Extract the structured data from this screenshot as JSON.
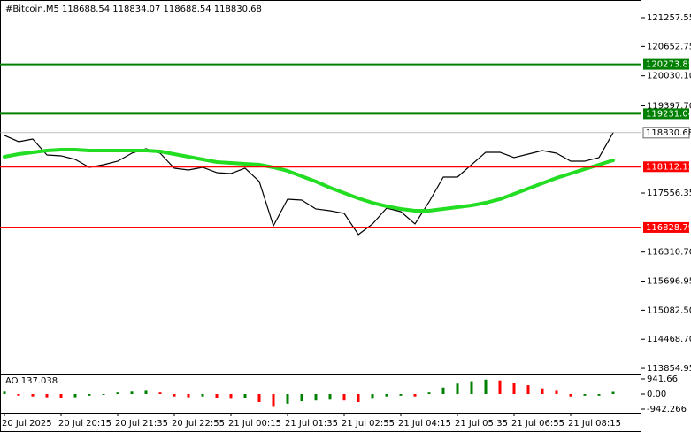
{
  "chart_data": [
    {
      "type": "line",
      "title": "#Bitcoin,M5  118688.54 118834.07 118688.54 118830.68",
      "categories": [
        "20 Jul 2025",
        null,
        null,
        null,
        "20 Jul 20:15",
        null,
        null,
        null,
        "20 Jul 21:35",
        null,
        null,
        null,
        "20 Jul 22:55",
        null,
        null,
        null,
        "21 Jul 00:15",
        null,
        null,
        null,
        "21 Jul 01:35",
        null,
        null,
        null,
        "21 Jul 02:55",
        null,
        null,
        null,
        "21 Jul 04:15",
        null,
        null,
        null,
        "21 Jul 05:35",
        null,
        null,
        null,
        "21 Jul 06:55",
        null,
        null,
        null,
        "21 Jul 08:15",
        null,
        null,
        null
      ],
      "series": [
        {
          "color": "#000000",
          "values": [
            118772,
            118641,
            118697,
            118361,
            118342,
            118267,
            118099,
            118155,
            118230,
            118398,
            118491,
            118398,
            118080,
            118043,
            118099,
            117987,
            117968,
            118080,
            117800,
            116865,
            117426,
            117407,
            117221,
            117183,
            117127,
            116679,
            116903,
            117239,
            117164,
            116903,
            117370,
            117893,
            117893,
            118155,
            118417,
            118417,
            118305,
            118379,
            118454,
            118398,
            118230,
            118230,
            118305,
            118830.68
          ]
        },
        {
          "color": "#22dd22",
          "values": [
            118323,
            118379,
            118417,
            118454,
            118473,
            118473,
            118454,
            118454,
            118454,
            118454,
            118454,
            118435,
            118379,
            118323,
            118267,
            118211,
            118192,
            118174,
            118155,
            118099,
            118024,
            117912,
            117800,
            117669,
            117557,
            117445,
            117351,
            117277,
            117221,
            117183,
            117183,
            117221,
            117258,
            117295,
            117351,
            117426,
            117538,
            117650,
            117763,
            117875,
            117968,
            118062,
            118155,
            118248
          ]
        }
      ],
      "ylim": [
        113744,
        121631
      ],
      "yticks": [
        121257.55,
        120652.75,
        {
          "value": 120030.1,
          "label": "120030.10"
        },
        {
          "value": 119397.7,
          "label": "119397.70"
        },
        117556.35,
        {
          "value": 116310.7,
          "label": "116310.70"
        },
        115696.95,
        {
          "value": 115082.5,
          "label": "115082.50"
        },
        {
          "value": 114468.7,
          "label": "114468.70"
        },
        113854.95
      ],
      "levels": [
        {
          "value": 120273.85,
          "color": "#008000"
        },
        {
          "value": 119231.04,
          "color": "#008000"
        },
        {
          "value": 118112.12,
          "color": "#ff0000"
        },
        {
          "value": 116828.79,
          "color": "#ff0000"
        }
      ]
    },
    {
      "type": "bar",
      "title": "AO 137.038",
      "values": [
        150,
        -100,
        -150,
        -200,
        -250,
        -200,
        -100,
        -50,
        100,
        150,
        200,
        100,
        -150,
        -200,
        -150,
        -250,
        -300,
        -250,
        -500,
        -800,
        -600,
        -450,
        -400,
        -350,
        -400,
        -500,
        -300,
        -150,
        -100,
        -150,
        100,
        400,
        650,
        800,
        900,
        850,
        700,
        550,
        350,
        200,
        -150,
        -100,
        -100,
        137.038
      ],
      "colors": {
        "up": "#008000",
        "down": "#ff0000"
      },
      "ylim": [
        -1164,
        1274
      ],
      "yticks": [
        941.66,
        {
          "value": 0,
          "label": "0.00"
        },
        -942.266
      ]
    }
  ]
}
